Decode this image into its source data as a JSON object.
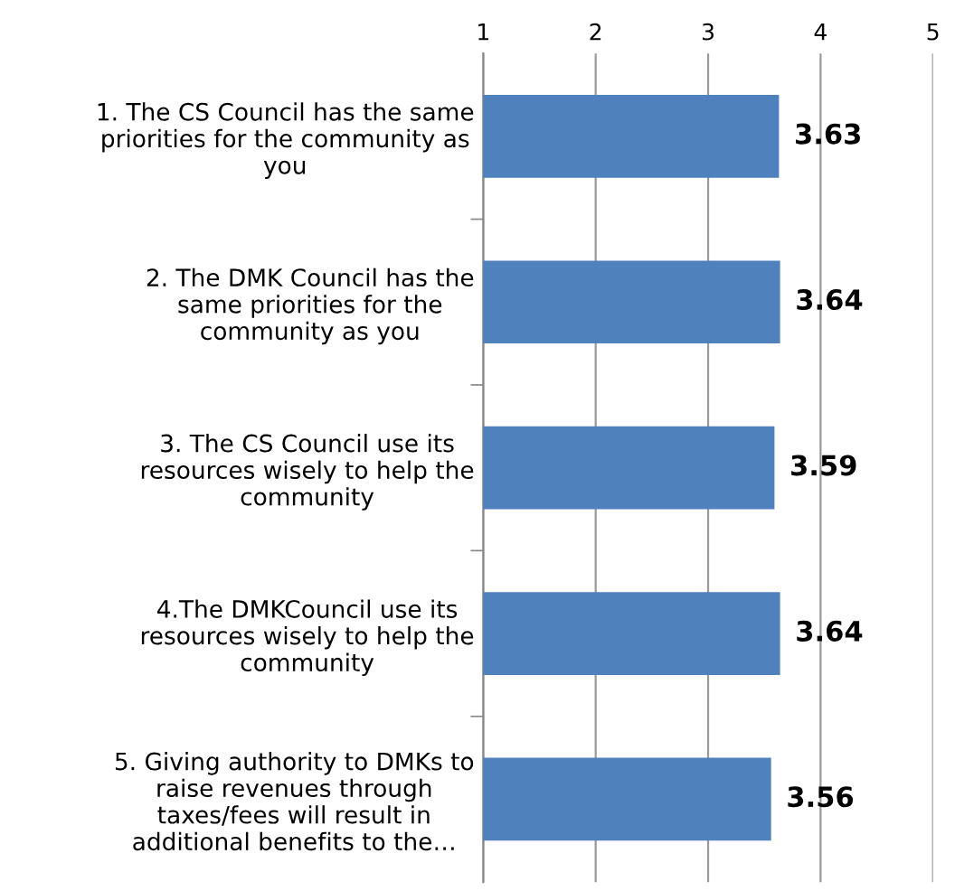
{
  "chart_data": {
    "type": "bar",
    "orientation": "horizontal",
    "categories": [
      "1. The CS Council has the same\npriorities for the community as\nyou",
      "2. The DMK Council has the\nsame priorities for the\ncommunity as you",
      "3. The CS Council use its\nresources wisely to help the\ncommunity",
      "4.The DMKCouncil use its\nresources wisely to help the\ncommunity",
      "5. Giving authority to DMKs to\nraise revenues through\ntaxes/fees will result in\nadditional benefits to the…"
    ],
    "values": [
      3.63,
      3.64,
      3.59,
      3.64,
      3.56
    ],
    "color": "#4f81bd",
    "xlim": [
      1,
      5
    ],
    "xticks": [
      1,
      2,
      3,
      4,
      5
    ],
    "grid": "x",
    "data_labels": true
  }
}
